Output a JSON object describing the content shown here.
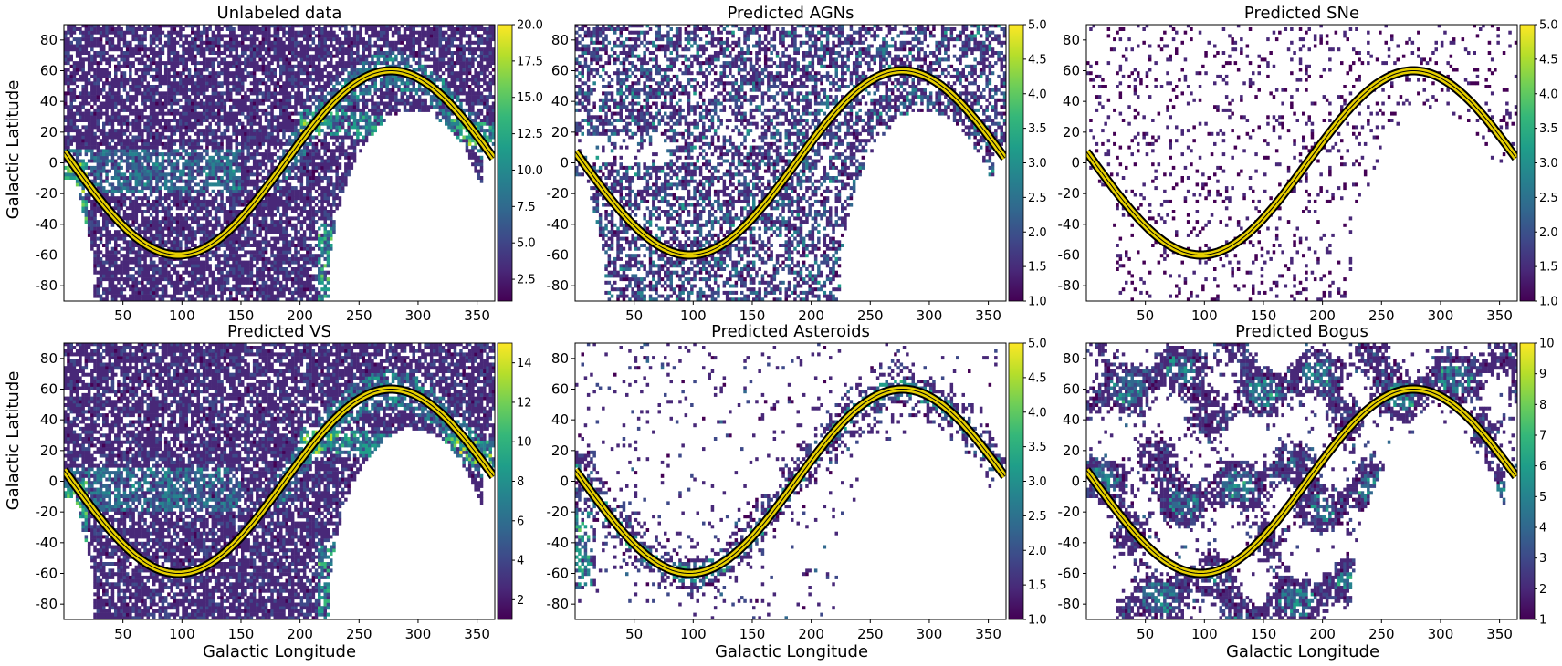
{
  "figure": {
    "xlabel": "Galactic Longitude",
    "ylabel": "Galactic Latitude"
  },
  "colors": {
    "colormap": [
      "#440154",
      "#482878",
      "#3e4989",
      "#31688e",
      "#26828e",
      "#1f9e89",
      "#35b779",
      "#6ece58",
      "#b5de2b",
      "#fde725"
    ],
    "ecliptic_fill": "#e6cf00",
    "ecliptic_edge": "#000000"
  },
  "chart_data": [
    {
      "type": "heatmap",
      "title": "Unlabeled data",
      "xlim": [
        0,
        365
      ],
      "ylim": [
        -90,
        90
      ],
      "xticks": [
        "50",
        "100",
        "150",
        "200",
        "250",
        "300",
        "350"
      ],
      "yticks": [
        "-80",
        "-60",
        "-40",
        "-20",
        "0",
        "20",
        "40",
        "60",
        "80"
      ],
      "colorbar": {
        "range": [
          1,
          20
        ],
        "ticks": [
          "2.5",
          "5.0",
          "7.5",
          "10.0",
          "12.5",
          "15.0",
          "17.5",
          "20.0"
        ]
      },
      "overlay": "ecliptic",
      "footprint": "survey"
    },
    {
      "type": "heatmap",
      "title": "Predicted AGNs",
      "xlim": [
        0,
        365
      ],
      "ylim": [
        -90,
        90
      ],
      "xticks": [
        "50",
        "100",
        "150",
        "200",
        "250",
        "300",
        "350"
      ],
      "yticks": [
        "-80",
        "-60",
        "-40",
        "-20",
        "0",
        "20",
        "40",
        "60",
        "80"
      ],
      "colorbar": {
        "range": [
          1,
          5
        ],
        "ticks": [
          "1.0",
          "1.5",
          "2.0",
          "2.5",
          "3.0",
          "3.5",
          "4.0",
          "4.5",
          "5.0"
        ]
      },
      "overlay": "ecliptic",
      "footprint": "agn"
    },
    {
      "type": "heatmap",
      "title": "Predicted SNe",
      "xlim": [
        0,
        365
      ],
      "ylim": [
        -90,
        90
      ],
      "xticks": [
        "50",
        "100",
        "150",
        "200",
        "250",
        "300",
        "350"
      ],
      "yticks": [
        "-80",
        "-60",
        "-40",
        "-20",
        "0",
        "20",
        "40",
        "60",
        "80"
      ],
      "colorbar": {
        "range": [
          1,
          5
        ],
        "ticks": [
          "1.0",
          "1.5",
          "2.0",
          "2.5",
          "3.0",
          "3.5",
          "4.0",
          "4.5",
          "5.0"
        ]
      },
      "overlay": "ecliptic",
      "footprint": "sparse"
    },
    {
      "type": "heatmap",
      "title": "Predicted VS",
      "xlim": [
        0,
        365
      ],
      "ylim": [
        -90,
        90
      ],
      "xticks": [
        "50",
        "100",
        "150",
        "200",
        "250",
        "300",
        "350"
      ],
      "yticks": [
        "-80",
        "-60",
        "-40",
        "-20",
        "0",
        "20",
        "40",
        "60",
        "80"
      ],
      "colorbar": {
        "range": [
          1,
          15
        ],
        "ticks": [
          "2",
          "4",
          "6",
          "8",
          "10",
          "12",
          "14"
        ]
      },
      "overlay": "ecliptic",
      "footprint": "survey"
    },
    {
      "type": "heatmap",
      "title": "Predicted Asteroids",
      "xlim": [
        0,
        365
      ],
      "ylim": [
        -90,
        90
      ],
      "xticks": [
        "50",
        "100",
        "150",
        "200",
        "250",
        "300",
        "350"
      ],
      "yticks": [
        "-80",
        "-60",
        "-40",
        "-20",
        "0",
        "20",
        "40",
        "60",
        "80"
      ],
      "colorbar": {
        "range": [
          1,
          5
        ],
        "ticks": [
          "1.0",
          "1.5",
          "2.0",
          "2.5",
          "3.0",
          "3.5",
          "4.0",
          "4.5",
          "5.0"
        ]
      },
      "overlay": "ecliptic",
      "footprint": "ecliptic-band"
    },
    {
      "type": "heatmap",
      "title": "Predicted Bogus",
      "xlim": [
        0,
        365
      ],
      "ylim": [
        -90,
        90
      ],
      "xticks": [
        "50",
        "100",
        "150",
        "200",
        "250",
        "300",
        "350"
      ],
      "yticks": [
        "-80",
        "-60",
        "-40",
        "-20",
        "0",
        "20",
        "40",
        "60",
        "80"
      ],
      "colorbar": {
        "range": [
          1,
          10
        ],
        "ticks": [
          "1",
          "2",
          "3",
          "4",
          "5",
          "6",
          "7",
          "8",
          "9",
          "10"
        ]
      },
      "overlay": "ecliptic",
      "footprint": "clumpy"
    }
  ]
}
